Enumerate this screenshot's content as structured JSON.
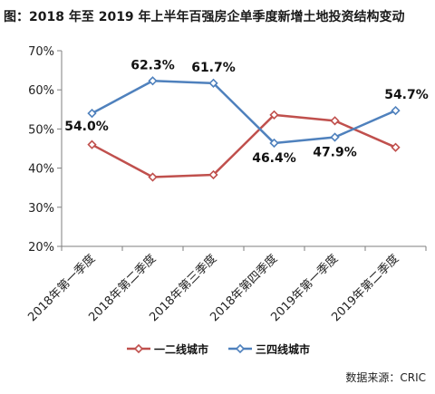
{
  "title": "图：2018 年至 2019 年上半年百强房企单季度新增土地投资结构变动",
  "source": "数据来源：CRIC",
  "chart_data": {
    "type": "line",
    "title": "图：2018 年至 2019 年上半年百强房企单季度新增土地投资结构变动",
    "categories": [
      "2018年第一季度",
      "2018年第二季度",
      "2018年第三季度",
      "2018年第四季度",
      "2019年第一季度",
      "2019年第二季度"
    ],
    "ylim": [
      20,
      70
    ],
    "yticks": [
      20,
      30,
      40,
      50,
      60,
      70
    ],
    "ytick_labels": [
      "20%",
      "30%",
      "40%",
      "50%",
      "60%",
      "70%"
    ],
    "grid": false,
    "legend_position": "bottom",
    "series": [
      {
        "name": "一二线城市",
        "color": "#c0504d",
        "values": [
          46.0,
          37.7,
          38.3,
          53.6,
          52.1,
          45.3
        ],
        "labels": [
          "",
          "",
          "",
          "",
          "",
          ""
        ]
      },
      {
        "name": "三四线城市",
        "color": "#4f81bd",
        "values": [
          54.0,
          62.3,
          61.7,
          46.4,
          47.9,
          54.7
        ],
        "labels": [
          "54.0%",
          "62.3%",
          "61.7%",
          "46.4%",
          "47.9%",
          "54.7%"
        ]
      }
    ]
  }
}
